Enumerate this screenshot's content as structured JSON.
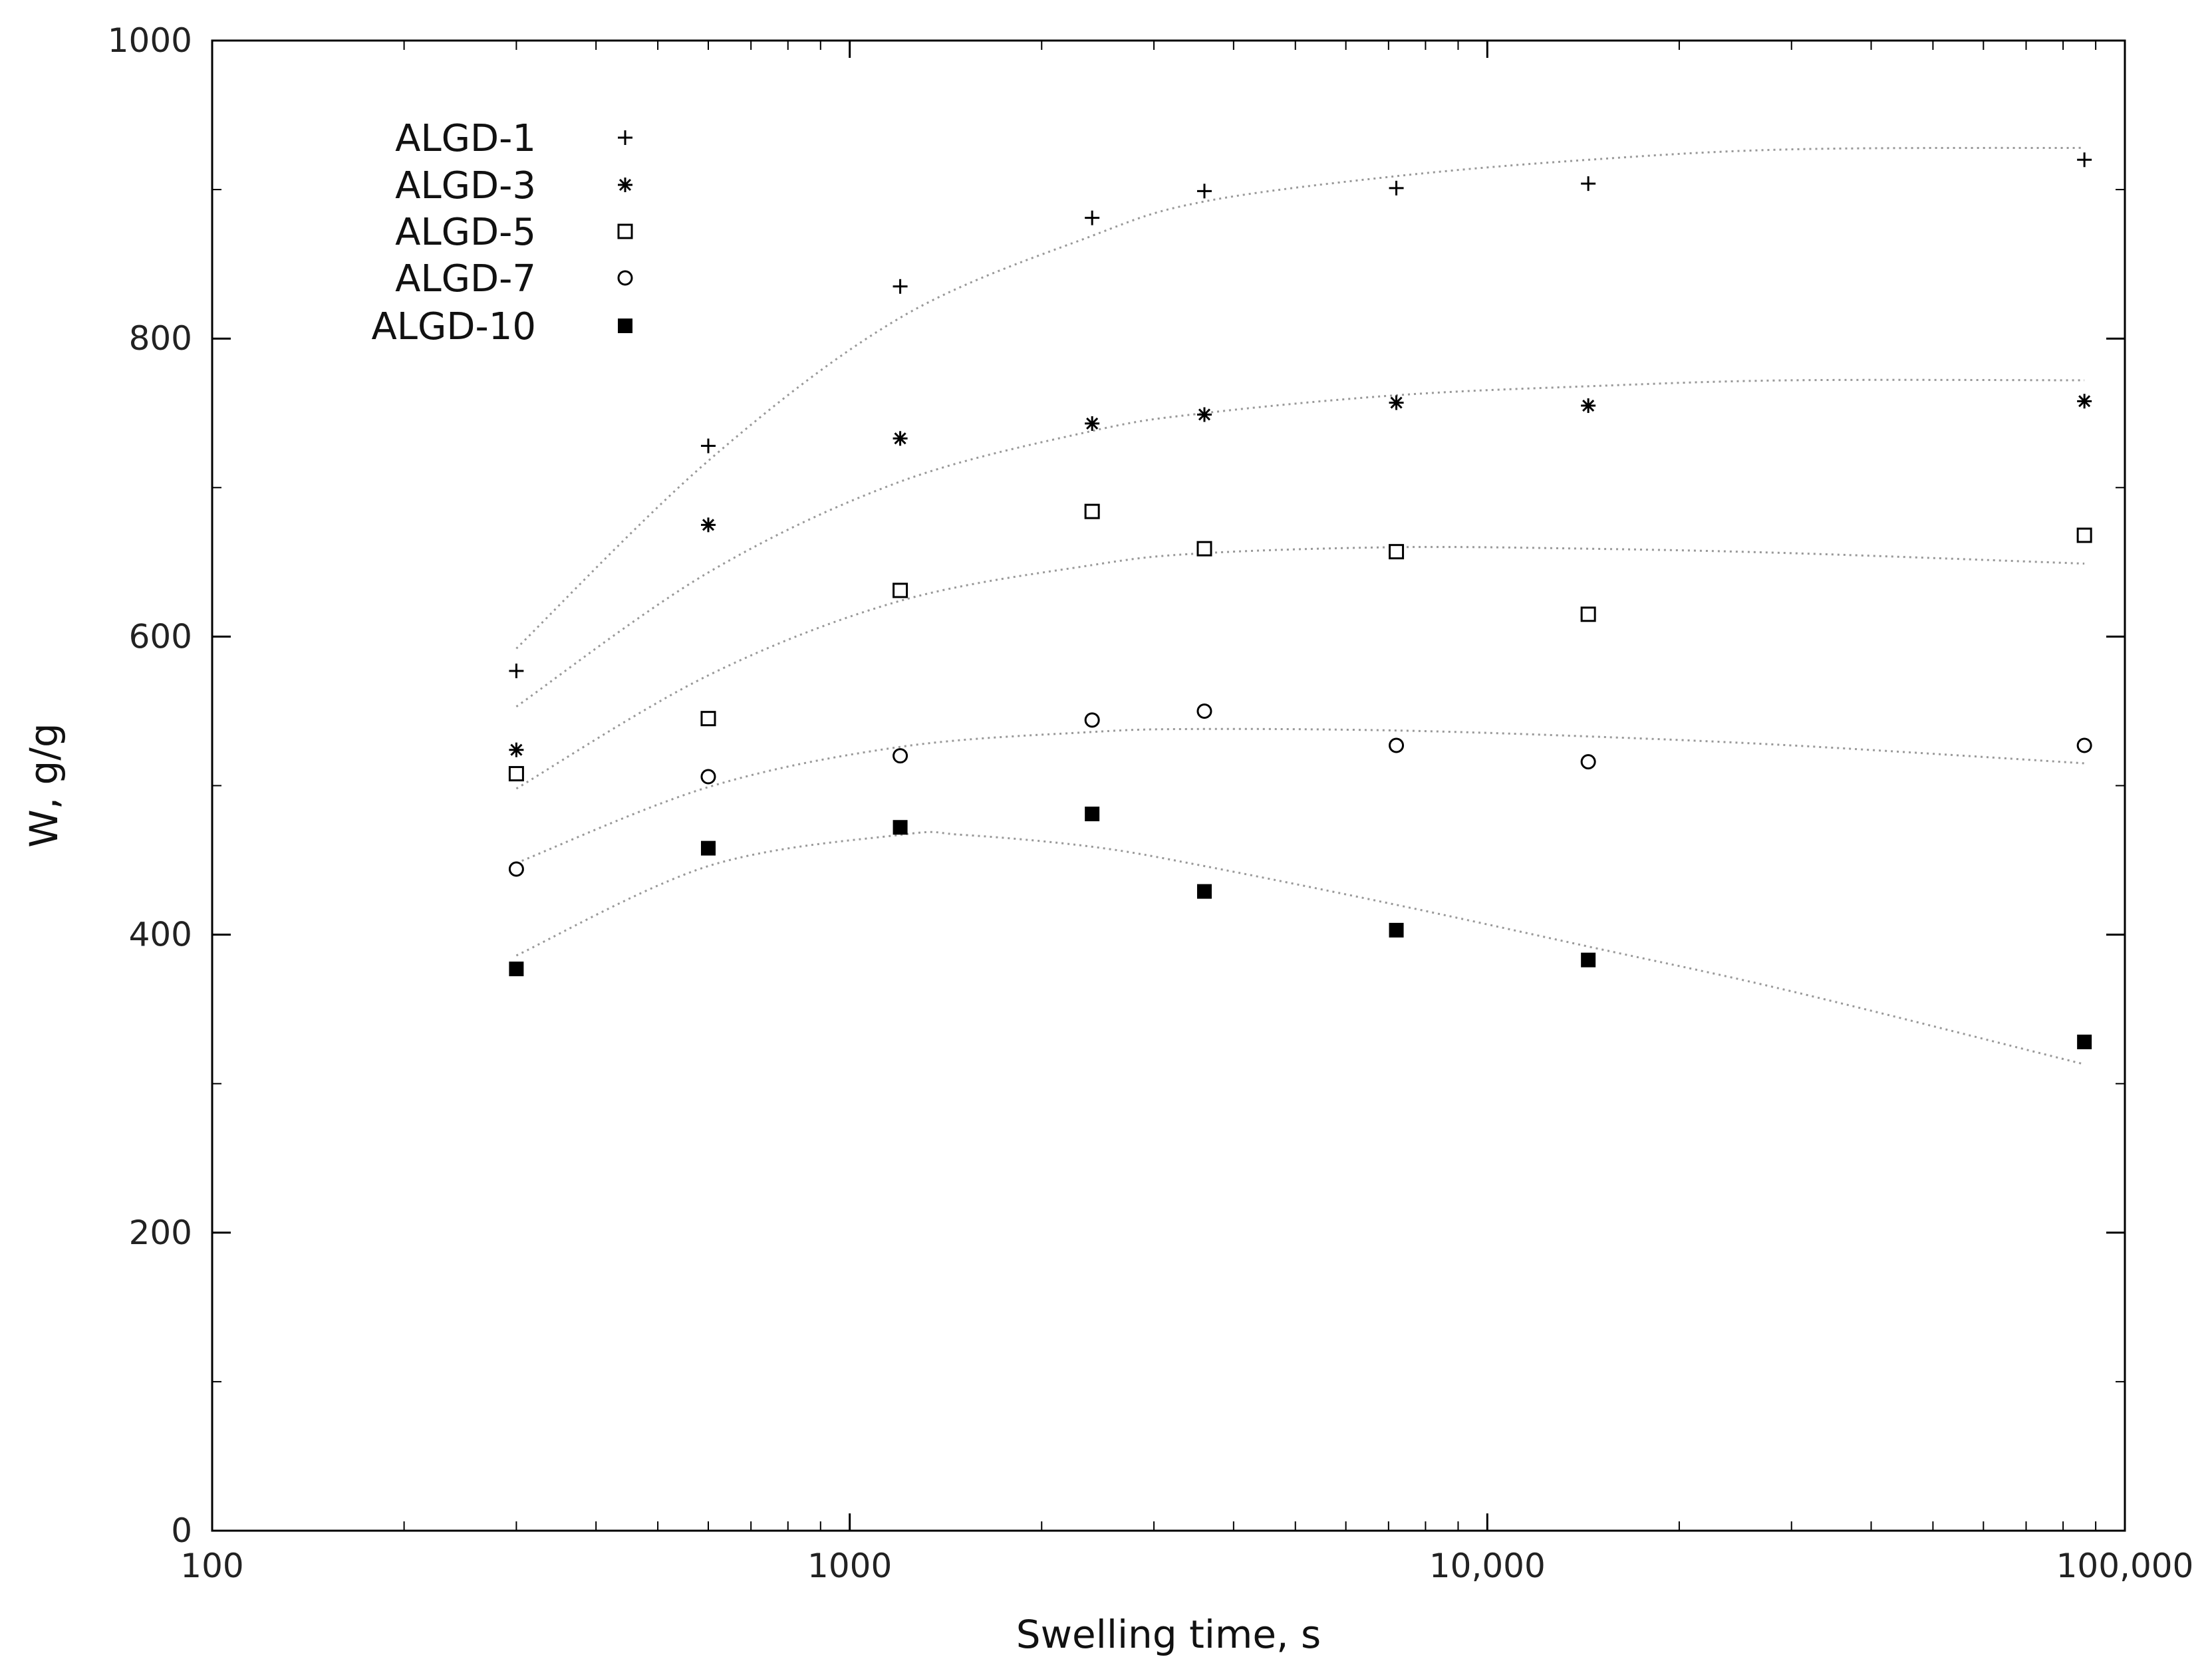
{
  "chart_data": {
    "type": "scatter",
    "title": "",
    "xlabel": "Swelling time, s",
    "ylabel": "W, g/g",
    "x_scale": "log",
    "xlim": [
      100,
      100000
    ],
    "ylim": [
      0,
      1000
    ],
    "x_ticks": [
      {
        "value": 100,
        "label": "100"
      },
      {
        "value": 1000,
        "label": "1000"
      },
      {
        "value": 10000,
        "label": "10,000"
      },
      {
        "value": 100000,
        "label": "100,000"
      }
    ],
    "y_ticks": [
      {
        "value": 0,
        "label": "0"
      },
      {
        "value": 200,
        "label": "200"
      },
      {
        "value": 400,
        "label": "400"
      },
      {
        "value": 600,
        "label": "600"
      },
      {
        "value": 800,
        "label": "800"
      },
      {
        "value": 1000,
        "label": "1000"
      }
    ],
    "grid": false,
    "legend_position": "top-left",
    "x": [
      300,
      600,
      1200,
      2400,
      3600,
      7200,
      14400,
      86400
    ],
    "series": [
      {
        "name": "ALGD-1",
        "marker": "plus",
        "values": [
          577,
          728,
          835,
          881,
          899,
          901,
          904,
          920
        ],
        "fit": [
          [
            300,
            592
          ],
          [
            600,
            718
          ],
          [
            1200,
            814
          ],
          [
            2400,
            869
          ],
          [
            3600,
            892
          ],
          [
            7200,
            909
          ],
          [
            14400,
            920
          ],
          [
            30000,
            927
          ],
          [
            86400,
            928
          ]
        ]
      },
      {
        "name": "ALGD-3",
        "marker": "asterisk",
        "values": [
          524,
          675,
          733,
          743,
          749,
          757,
          755,
          758
        ],
        "fit": [
          [
            300,
            553
          ],
          [
            600,
            643
          ],
          [
            1200,
            704
          ],
          [
            2400,
            738
          ],
          [
            3600,
            750
          ],
          [
            7200,
            762
          ],
          [
            14400,
            768
          ],
          [
            30000,
            772
          ],
          [
            86400,
            772
          ]
        ]
      },
      {
        "name": "ALGD-5",
        "marker": "open-square",
        "values": [
          508,
          545,
          631,
          684,
          659,
          657,
          615,
          668
        ],
        "fit": [
          [
            300,
            498
          ],
          [
            600,
            574
          ],
          [
            1200,
            624
          ],
          [
            2400,
            648
          ],
          [
            3600,
            656
          ],
          [
            7200,
            660
          ],
          [
            14400,
            659
          ],
          [
            30000,
            656
          ],
          [
            86400,
            649
          ]
        ]
      },
      {
        "name": "ALGD-7",
        "marker": "open-circle",
        "values": [
          444,
          506,
          520,
          544,
          550,
          527,
          516,
          527
        ],
        "fit": [
          [
            300,
            448
          ],
          [
            600,
            499
          ],
          [
            1200,
            526
          ],
          [
            2400,
            536
          ],
          [
            3600,
            538
          ],
          [
            7200,
            537
          ],
          [
            14400,
            533
          ],
          [
            30000,
            527
          ],
          [
            86400,
            515
          ]
        ]
      },
      {
        "name": "ALGD-10",
        "marker": "filled-square",
        "values": [
          377,
          458,
          472,
          481,
          429,
          403,
          383,
          328
        ],
        "fit": [
          [
            300,
            386
          ],
          [
            600,
            446
          ],
          [
            1200,
            467
          ],
          [
            1500,
            467
          ],
          [
            2400,
            459
          ],
          [
            3600,
            446
          ],
          [
            7200,
            420
          ],
          [
            14400,
            392
          ],
          [
            30000,
            362
          ],
          [
            86400,
            313
          ]
        ]
      }
    ]
  },
  "colors": {
    "marker": "#000000",
    "fit_line": "#999999",
    "axis": "#000000"
  }
}
